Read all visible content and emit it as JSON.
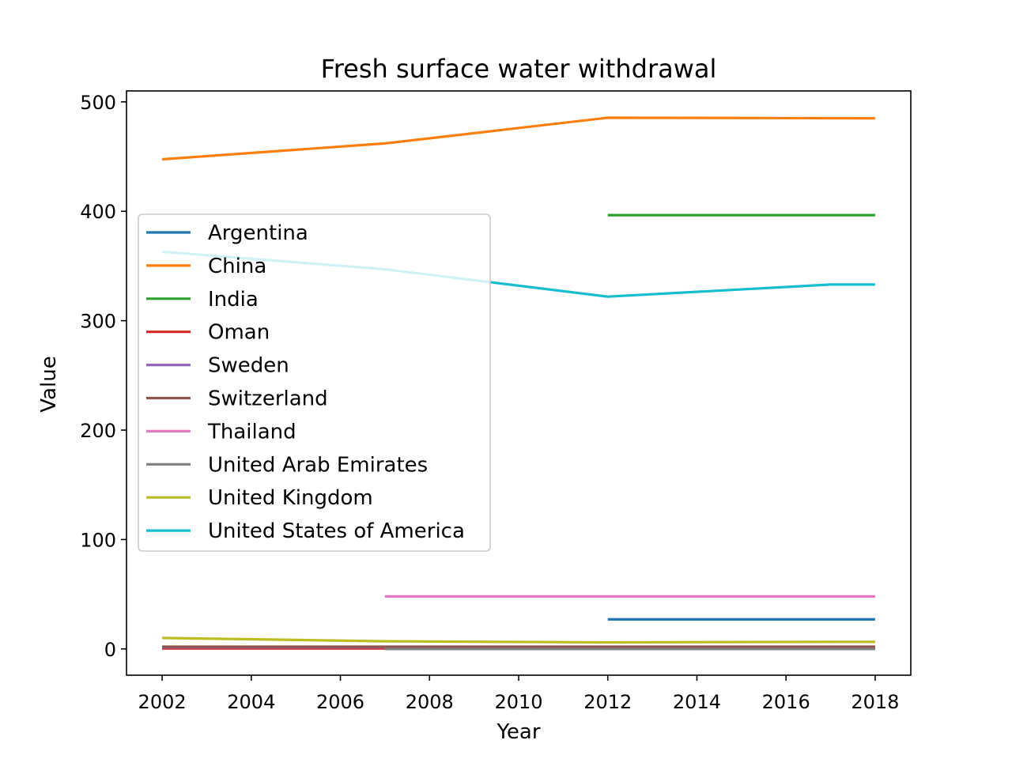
{
  "chart_data": {
    "type": "line",
    "title": "Fresh surface water withdrawal",
    "xlabel": "Year",
    "ylabel": "Value",
    "xlim": [
      2001.2,
      2018.8
    ],
    "ylim": [
      -24,
      510
    ],
    "xticks": [
      2002,
      2004,
      2006,
      2008,
      2010,
      2012,
      2014,
      2016,
      2018
    ],
    "yticks": [
      0,
      100,
      200,
      300,
      400,
      500
    ],
    "grid": false,
    "legend_position": "center-left",
    "series": [
      {
        "name": "Argentina",
        "color": "#1f77b4",
        "points": [
          [
            2012,
            27
          ],
          [
            2018,
            27
          ]
        ]
      },
      {
        "name": "China",
        "color": "#ff7f0e",
        "points": [
          [
            2002,
            447.5
          ],
          [
            2007,
            462
          ],
          [
            2012,
            485.5
          ],
          [
            2018,
            485
          ]
        ]
      },
      {
        "name": "India",
        "color": "#2ca02c",
        "points": [
          [
            2012,
            396.5
          ],
          [
            2018,
            396.5
          ]
        ]
      },
      {
        "name": "Oman",
        "color": "#d62728",
        "points": [
          [
            2002,
            0.5
          ],
          [
            2018,
            0.5
          ]
        ]
      },
      {
        "name": "Sweden",
        "color": "#9467bd",
        "points": [
          [
            2002,
            1.5
          ],
          [
            2018,
            1.5
          ]
        ]
      },
      {
        "name": "Switzerland",
        "color": "#8c564b",
        "points": [
          [
            2002,
            2
          ],
          [
            2018,
            2
          ]
        ]
      },
      {
        "name": "Thailand",
        "color": "#e377c2",
        "points": [
          [
            2007,
            48
          ],
          [
            2018,
            48
          ]
        ]
      },
      {
        "name": "United Arab Emirates",
        "color": "#7f7f7f",
        "points": [
          [
            2007,
            0
          ],
          [
            2018,
            0
          ]
        ]
      },
      {
        "name": "United Kingdom",
        "color": "#bcbd22",
        "points": [
          [
            2002,
            10
          ],
          [
            2007,
            7
          ],
          [
            2012,
            6
          ],
          [
            2017,
            6.5
          ],
          [
            2018,
            6.5
          ]
        ]
      },
      {
        "name": "United States of America",
        "color": "#17becf",
        "points": [
          [
            2002,
            363
          ],
          [
            2007,
            347
          ],
          [
            2012,
            322
          ],
          [
            2017,
            333
          ],
          [
            2018,
            333
          ]
        ]
      }
    ]
  }
}
